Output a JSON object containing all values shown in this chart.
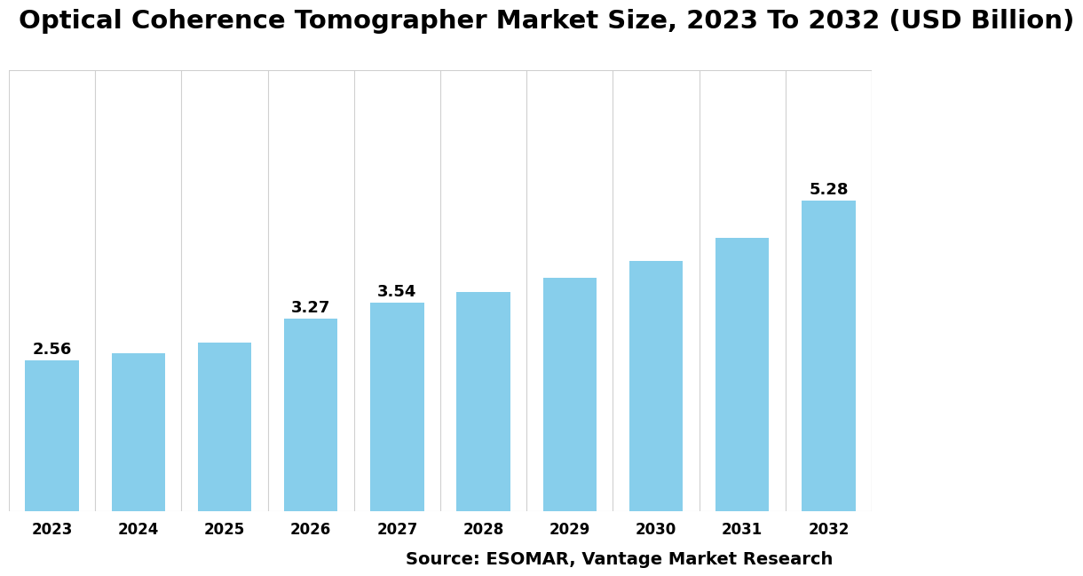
{
  "title": "Optical Coherence Tomographer Market Size, 2023 To 2032 (USD Billion)",
  "categories": [
    "2023",
    "2024",
    "2025",
    "2026",
    "2027",
    "2028",
    "2029",
    "2030",
    "2031",
    "2032"
  ],
  "values": [
    2.56,
    2.69,
    2.86,
    3.27,
    3.54,
    3.73,
    3.97,
    4.25,
    4.65,
    5.28
  ],
  "labeled_indices": [
    0,
    3,
    4,
    9
  ],
  "labels": {
    "0": "2.56",
    "3": "3.27",
    "4": "3.54",
    "9": "5.28"
  },
  "bar_color": "#87CEEB",
  "background_color": "#ffffff",
  "grid_color": "#d0d0d0",
  "title_fontsize": 21,
  "tick_fontsize": 12,
  "label_fontsize": 13,
  "source_text": "Source: ESOMAR, Vantage Market Research",
  "source_fontsize": 14,
  "ylim": [
    0,
    7.5
  ]
}
